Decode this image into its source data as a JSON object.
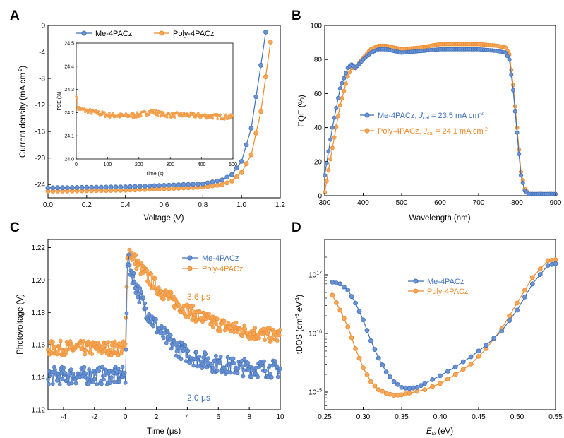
{
  "colors": {
    "blue": "#3f6fb8",
    "orange": "#ee8a2a",
    "blue_fill": "#6b93d4",
    "orange_fill": "#f6a85a"
  },
  "panels": {
    "A": {
      "letter": "A",
      "xlabel": "Voltage (V)",
      "ylabel_main": "Current density (mA cm",
      "ylabel_sup": "-2",
      "ylabel_end": ")",
      "xticks": [
        "0.0",
        "0.2",
        "0.4",
        "0.6",
        "0.8",
        "1.0",
        "1.2"
      ],
      "yticks": [
        "0",
        "-4",
        "-8",
        "-12",
        "-16",
        "-20",
        "-24"
      ],
      "legend": [
        "Me-4PACz",
        "Poly-4PACz"
      ],
      "inset": {
        "xlabel": "Time (s)",
        "ylabel": "PCE (%)",
        "xticks": [
          "0",
          "100",
          "200",
          "300",
          "400",
          "500"
        ],
        "yticks": [
          "24.0",
          "24.1",
          "24.2",
          "24.3",
          "24.4",
          "24.5"
        ]
      }
    },
    "B": {
      "letter": "B",
      "xlabel": "Wavelength (nm)",
      "ylabel": "EQE (%)",
      "xticks": [
        "300",
        "400",
        "500",
        "600",
        "700",
        "800",
        "900"
      ],
      "yticks": [
        "0",
        "20",
        "40",
        "60",
        "80",
        "100"
      ],
      "legend": [
        {
          "pre": "Me-4PACz, ",
          "j": "J",
          "sub": "cal",
          "post": " = 23.5 mA cm",
          "sup": "-2"
        },
        {
          "pre": "Poly-4PACz, ",
          "j": "J",
          "sub": "cal",
          "post": " = 24.1 mA cm",
          "sup": "-2"
        }
      ]
    },
    "C": {
      "letter": "C",
      "xlabel": "Time (μs)",
      "ylabel": "Photovoltage (V)",
      "xticks": [
        "-4",
        "-2",
        "0",
        "2",
        "4",
        "6",
        "8",
        "10"
      ],
      "yticks": [
        "1.12",
        "1.14",
        "1.16",
        "1.18",
        "1.20",
        "1.22"
      ],
      "legend": [
        "Me-4PACz",
        "Poly-4PACz"
      ],
      "annotations": [
        "3.6 μs",
        "2.0 μs"
      ]
    },
    "D": {
      "letter": "D",
      "xlabel_main": "E",
      "xlabel_sub": "ω",
      "xlabel_end": " (eV)",
      "ylabel_main": "tDOS (cm",
      "ylabel_sup1": "-3",
      "ylabel_mid": " eV",
      "ylabel_sup2": "-1",
      "ylabel_end": ")",
      "xticks": [
        "0.25",
        "0.30",
        "0.35",
        "0.40",
        "0.45",
        "0.50",
        "0.55"
      ],
      "yticks": [
        {
          "base": "10",
          "exp": "15"
        },
        {
          "base": "10",
          "exp": "16"
        },
        {
          "base": "10",
          "exp": "17"
        }
      ],
      "legend": [
        "Me-4PACz",
        "Poly-4PACz"
      ]
    }
  },
  "chart_data": [
    {
      "panel": "A",
      "type": "line",
      "xlabel": "Voltage (V)",
      "ylabel": "Current density (mA cm-2)",
      "xlim": [
        0,
        1.2
      ],
      "ylim": [
        -26,
        0
      ],
      "series": [
        {
          "name": "Me-4PACz",
          "Jsc": -24.5,
          "Voc": 1.13,
          "points": [
            [
              0,
              -24.5
            ],
            [
              0.4,
              -24.35
            ],
            [
              0.8,
              -23.9
            ],
            [
              0.9,
              -23.3
            ],
            [
              0.95,
              -22.5
            ],
            [
              1.0,
              -20.5
            ],
            [
              1.05,
              -15.5
            ],
            [
              1.1,
              -6.0
            ],
            [
              1.13,
              0
            ]
          ]
        },
        {
          "name": "Poly-4PACz",
          "Jsc": -25.0,
          "Voc": 1.16,
          "points": [
            [
              0,
              -25.0
            ],
            [
              0.4,
              -24.85
            ],
            [
              0.8,
              -24.4
            ],
            [
              0.9,
              -24.0
            ],
            [
              0.95,
              -23.5
            ],
            [
              1.0,
              -22.2
            ],
            [
              1.05,
              -19.5
            ],
            [
              1.1,
              -13.0
            ],
            [
              1.15,
              -2.5
            ],
            [
              1.16,
              0
            ]
          ]
        }
      ],
      "inset": {
        "type": "scatter",
        "xlabel": "Time (s)",
        "ylabel": "PCE (%)",
        "xlim": [
          0,
          500
        ],
        "ylim": [
          24.0,
          24.5
        ],
        "series": [
          {
            "name": "Poly-4PACz",
            "points": [
              [
                0,
                24.28
              ],
              [
                5,
                24.22
              ],
              [
                25,
                24.21
              ],
              [
                100,
                24.19
              ],
              [
                150,
                24.185
              ],
              [
                200,
                24.19
              ],
              [
                240,
                24.205
              ],
              [
                280,
                24.19
              ],
              [
                350,
                24.19
              ],
              [
                420,
                24.185
              ],
              [
                500,
                24.18
              ]
            ]
          }
        ]
      }
    },
    {
      "panel": "B",
      "type": "line",
      "xlabel": "Wavelength (nm)",
      "ylabel": "EQE (%)",
      "xlim": [
        300,
        900
      ],
      "ylim": [
        0,
        100
      ],
      "series": [
        {
          "name": "Me-4PACz",
          "Jcal": "23.5 mA cm-2",
          "points": [
            [
              300,
              12
            ],
            [
              320,
              40
            ],
            [
              340,
              63
            ],
            [
              360,
              75
            ],
            [
              370,
              77
            ],
            [
              380,
              75
            ],
            [
              400,
              80
            ],
            [
              420,
              84
            ],
            [
              440,
              86
            ],
            [
              460,
              86
            ],
            [
              500,
              84
            ],
            [
              550,
              85
            ],
            [
              600,
              86
            ],
            [
              650,
              86
            ],
            [
              700,
              86
            ],
            [
              750,
              85
            ],
            [
              770,
              84
            ],
            [
              780,
              80
            ],
            [
              790,
              62
            ],
            [
              800,
              37
            ],
            [
              810,
              12
            ],
            [
              820,
              3
            ],
            [
              830,
              1
            ],
            [
              900,
              1
            ]
          ]
        },
        {
          "name": "Poly-4PACz",
          "Jcal": "24.1 mA cm-2",
          "points": [
            [
              300,
              2
            ],
            [
              320,
              28
            ],
            [
              340,
              53
            ],
            [
              360,
              70
            ],
            [
              370,
              75
            ],
            [
              380,
              75
            ],
            [
              400,
              81
            ],
            [
              420,
              86
            ],
            [
              440,
              88
            ],
            [
              460,
              88
            ],
            [
              500,
              86
            ],
            [
              550,
              87
            ],
            [
              600,
              89
            ],
            [
              650,
              89
            ],
            [
              700,
              89
            ],
            [
              750,
              88
            ],
            [
              770,
              87
            ],
            [
              780,
              83
            ],
            [
              790,
              65
            ],
            [
              800,
              40
            ],
            [
              810,
              14
            ],
            [
              820,
              4
            ],
            [
              830,
              1
            ],
            [
              900,
              1
            ]
          ]
        }
      ]
    },
    {
      "panel": "C",
      "type": "scatter",
      "xlabel": "Time (μs)",
      "ylabel": "Photovoltage (V)",
      "xlim": [
        -5,
        10
      ],
      "ylim": [
        1.12,
        1.225
      ],
      "series": [
        {
          "name": "Me-4PACz",
          "baseline": 1.141,
          "peak": 1.215,
          "tau_us": 2.0,
          "points": [
            [
              -5,
              1.141
            ],
            [
              0,
              1.141
            ],
            [
              0.1,
              1.215
            ],
            [
              1,
              1.183
            ],
            [
              2,
              1.166
            ],
            [
              4,
              1.153
            ],
            [
              6,
              1.147
            ],
            [
              8,
              1.145
            ],
            [
              10,
              1.144
            ]
          ]
        },
        {
          "name": "Poly-4PACz",
          "baseline": 1.158,
          "peak": 1.221,
          "tau_us": 3.6,
          "points": [
            [
              -5,
              1.158
            ],
            [
              0,
              1.158
            ],
            [
              0.2,
              1.221
            ],
            [
              1,
              1.206
            ],
            [
              2,
              1.194
            ],
            [
              4,
              1.181
            ],
            [
              6,
              1.173
            ],
            [
              8,
              1.168
            ],
            [
              10,
              1.164
            ]
          ]
        }
      ],
      "annotations": [
        "3.6 μs",
        "2.0 μs"
      ]
    },
    {
      "panel": "D",
      "type": "line",
      "yscale": "log",
      "xlabel": "Eω (eV)",
      "ylabel": "tDOS (cm-3 eV-1)",
      "xlim": [
        0.25,
        0.55
      ],
      "ylim": [
        500000000000000.0,
        4e+17
      ],
      "series": [
        {
          "name": "Me-4PACz",
          "points": [
            [
              0.26,
              7.5e+16
            ],
            [
              0.27,
              7e+16
            ],
            [
              0.28,
              5.5e+16
            ],
            [
              0.29,
              3.3e+16
            ],
            [
              0.3,
              1.7e+16
            ],
            [
              0.31,
              7500000000000000.0
            ],
            [
              0.32,
              3800000000000000.0
            ],
            [
              0.33,
              2200000000000000.0
            ],
            [
              0.34,
              1500000000000000.0
            ],
            [
              0.35,
              1200000000000000.0
            ],
            [
              0.36,
              1150000000000000.0
            ],
            [
              0.37,
              1200000000000000.0
            ],
            [
              0.38,
              1400000000000000.0
            ],
            [
              0.4,
              1900000000000000.0
            ],
            [
              0.42,
              2700000000000000.0
            ],
            [
              0.44,
              4000000000000000.0
            ],
            [
              0.46,
              6300000000000000.0
            ],
            [
              0.48,
              1.1e+16
            ],
            [
              0.5,
              2.5e+16
            ],
            [
              0.52,
              7e+16
            ],
            [
              0.54,
              1.45e+17
            ],
            [
              0.55,
              1.55e+17
            ]
          ]
        },
        {
          "name": "Poly-4PACz",
          "points": [
            [
              0.26,
              4.5e+16
            ],
            [
              0.27,
              2.5e+16
            ],
            [
              0.28,
              1.3e+16
            ],
            [
              0.29,
              5500000000000000.0
            ],
            [
              0.3,
              2600000000000000.0
            ],
            [
              0.31,
              1500000000000000.0
            ],
            [
              0.32,
              1100000000000000.0
            ],
            [
              0.33,
              950000000000000.0
            ],
            [
              0.34,
              880000000000000.0
            ],
            [
              0.35,
              900000000000000.0
            ],
            [
              0.36,
              960000000000000.0
            ],
            [
              0.38,
              1100000000000000.0
            ],
            [
              0.4,
              1400000000000000.0
            ],
            [
              0.42,
              2000000000000000.0
            ],
            [
              0.44,
              3000000000000000.0
            ],
            [
              0.46,
              5500000000000000.0
            ],
            [
              0.48,
              1.2e+16
            ],
            [
              0.5,
              3.3e+16
            ],
            [
              0.52,
              9e+16
            ],
            [
              0.54,
              1.75e+17
            ],
            [
              0.55,
              1.8e+17
            ]
          ]
        }
      ]
    }
  ]
}
